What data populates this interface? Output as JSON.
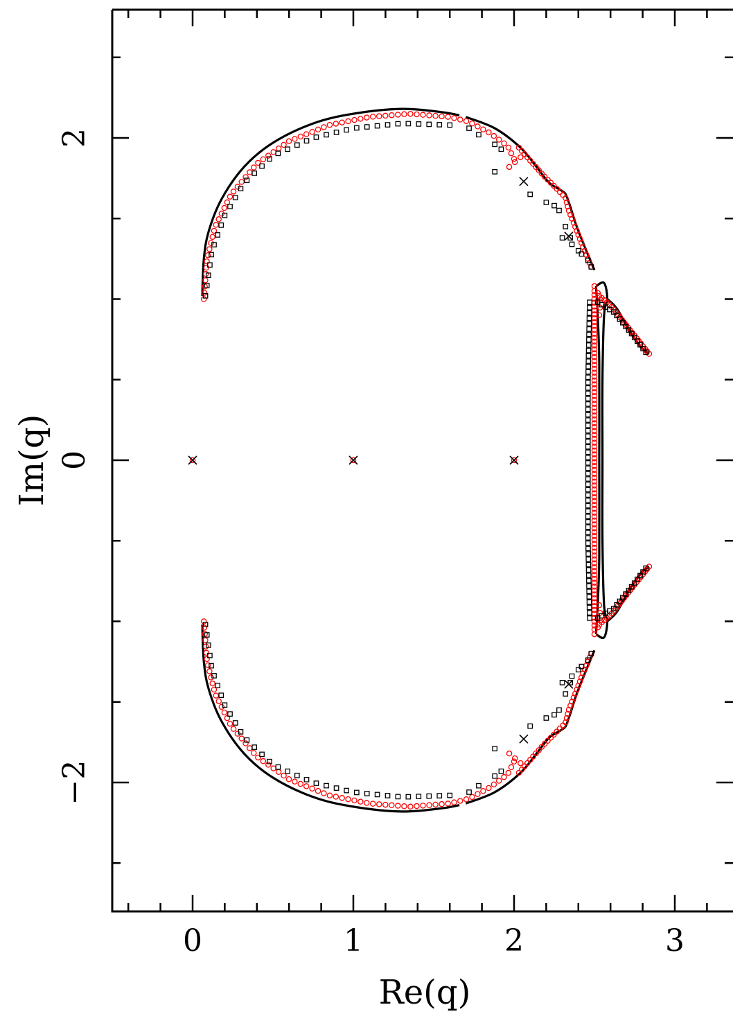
{
  "chart_data": {
    "type": "scatter",
    "xlabel": "Re(q)",
    "ylabel": "Im(q)",
    "xlim": [
      -0.5,
      3.35
    ],
    "ylim": [
      -2.8,
      2.8
    ],
    "x_ticks": [
      0,
      1,
      2,
      3
    ],
    "x_tick_labels": [
      "0",
      "1",
      "2",
      "3"
    ],
    "y_ticks": [
      -2,
      0,
      2
    ],
    "y_tick_labels": [
      "−2",
      "0",
      "2"
    ],
    "grid": false,
    "colors": {
      "curve": "#000000",
      "circles": "#ff0000",
      "squares": "#000000",
      "crosses": "#000000"
    },
    "series": [
      {
        "type": "line",
        "points_upper": [
          [
            0.06,
            1.02
          ],
          [
            0.07,
            1.25
          ],
          [
            0.1,
            1.42
          ],
          [
            0.18,
            1.62
          ],
          [
            0.32,
            1.82
          ],
          [
            0.5,
            1.97
          ],
          [
            0.75,
            2.09
          ],
          [
            1.0,
            2.15
          ],
          [
            1.3,
            2.18
          ],
          [
            1.55,
            2.16
          ],
          [
            1.66,
            2.14
          ]
        ],
        "points_upper_right": [
          [
            1.7,
            2.13
          ],
          [
            1.88,
            2.06
          ],
          [
            2.04,
            1.94
          ],
          [
            2.14,
            1.82
          ],
          [
            2.22,
            1.72
          ],
          [
            2.3,
            1.67
          ],
          [
            2.33,
            1.63
          ],
          [
            2.39,
            1.45
          ],
          [
            2.45,
            1.3
          ],
          [
            2.5,
            1.18
          ]
        ],
        "points_right_loop": [
          [
            2.51,
            1.08
          ],
          [
            2.52,
            0.9
          ],
          [
            2.53,
            0.6
          ],
          [
            2.53,
            0.0
          ],
          [
            2.53,
            -0.6
          ],
          [
            2.52,
            -0.9
          ],
          [
            2.51,
            -1.08
          ]
        ],
        "points_right_loop_outer": [
          [
            2.51,
            1.08
          ],
          [
            2.56,
            1.1
          ],
          [
            2.58,
            1.0
          ],
          [
            2.56,
            0.9
          ],
          [
            2.55,
            0.5
          ],
          [
            2.55,
            0.0
          ],
          [
            2.55,
            -0.5
          ],
          [
            2.56,
            -0.9
          ],
          [
            2.58,
            -1.0
          ],
          [
            2.56,
            -1.1
          ],
          [
            2.51,
            -1.08
          ]
        ],
        "points_upper_branch": [
          [
            2.58,
            1.0
          ],
          [
            2.64,
            0.94
          ],
          [
            2.72,
            0.8
          ],
          [
            2.79,
            0.7
          ],
          [
            2.84,
            0.66
          ]
        ]
      },
      {
        "type": "scatter",
        "marker": "circle",
        "approx_point_count": 360
      },
      {
        "type": "scatter",
        "marker": "square",
        "approx_point_count": 160
      },
      {
        "type": "scatter",
        "marker": "cross",
        "points": [
          [
            0,
            0
          ],
          [
            1,
            0
          ],
          [
            2,
            0
          ],
          [
            2.06,
            1.73
          ],
          [
            2.06,
            -1.73
          ],
          [
            2.34,
            1.39
          ],
          [
            2.34,
            -1.39
          ]
        ]
      }
    ]
  }
}
